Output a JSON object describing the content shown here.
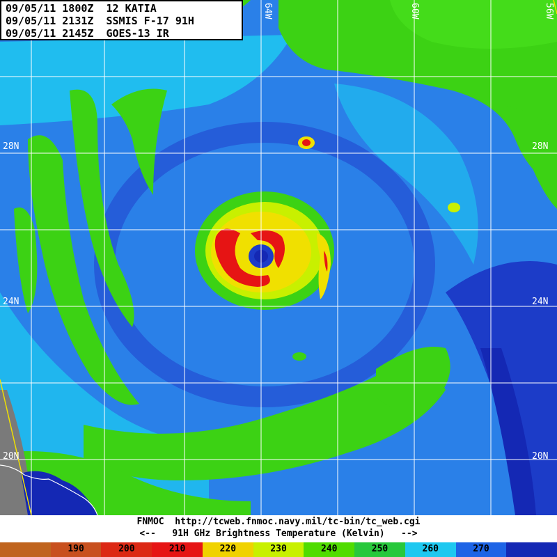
{
  "header": {
    "line1": "09/05/11 1800Z  12 KATIA",
    "line2": "09/05/11 2131Z  SSMIS F-17 91H",
    "line3": "09/05/11 2145Z  GOES-13 IR"
  },
  "grid": {
    "latitudes": [
      {
        "label": "28N",
        "left": true,
        "right": true
      },
      {
        "label": "24N",
        "left": true,
        "right": true
      },
      {
        "label": "20N",
        "left": true,
        "right": true
      }
    ],
    "longitudes": [
      {
        "label": "64W"
      },
      {
        "label": "60W"
      },
      {
        "label": "56W"
      }
    ]
  },
  "footer": {
    "source_line": "FNMOC  http://tcweb.fnmoc.navy.mil/tc-bin/tc_web.cgi",
    "legend_line": "<--   91H GHz Brightness Temperature (Kelvin)   -->"
  },
  "colorbar": {
    "segments": [
      {
        "color": "#c0641e",
        "label": ""
      },
      {
        "color": "#c8501e",
        "label": "190"
      },
      {
        "color": "#dc2814",
        "label": "200"
      },
      {
        "color": "#e61414",
        "label": "210"
      },
      {
        "color": "#f0d200",
        "label": "220"
      },
      {
        "color": "#c8f000",
        "label": "230"
      },
      {
        "color": "#50dc00",
        "label": "240"
      },
      {
        "color": "#28c83c",
        "label": "250"
      },
      {
        "color": "#1ec8f0",
        "label": "260"
      },
      {
        "color": "#1e64e6",
        "label": "270"
      },
      {
        "color": "#1428b4",
        "label": ""
      }
    ]
  },
  "colors": {
    "ocean_blue": "#2a7ee6",
    "deep_blue": "#1c3cc8",
    "cyan": "#1ec8f0",
    "green": "#3cd214",
    "yellow": "#f0e000",
    "red": "#e61414",
    "grid_line": "#ffffff",
    "land_gray": "#808080"
  }
}
